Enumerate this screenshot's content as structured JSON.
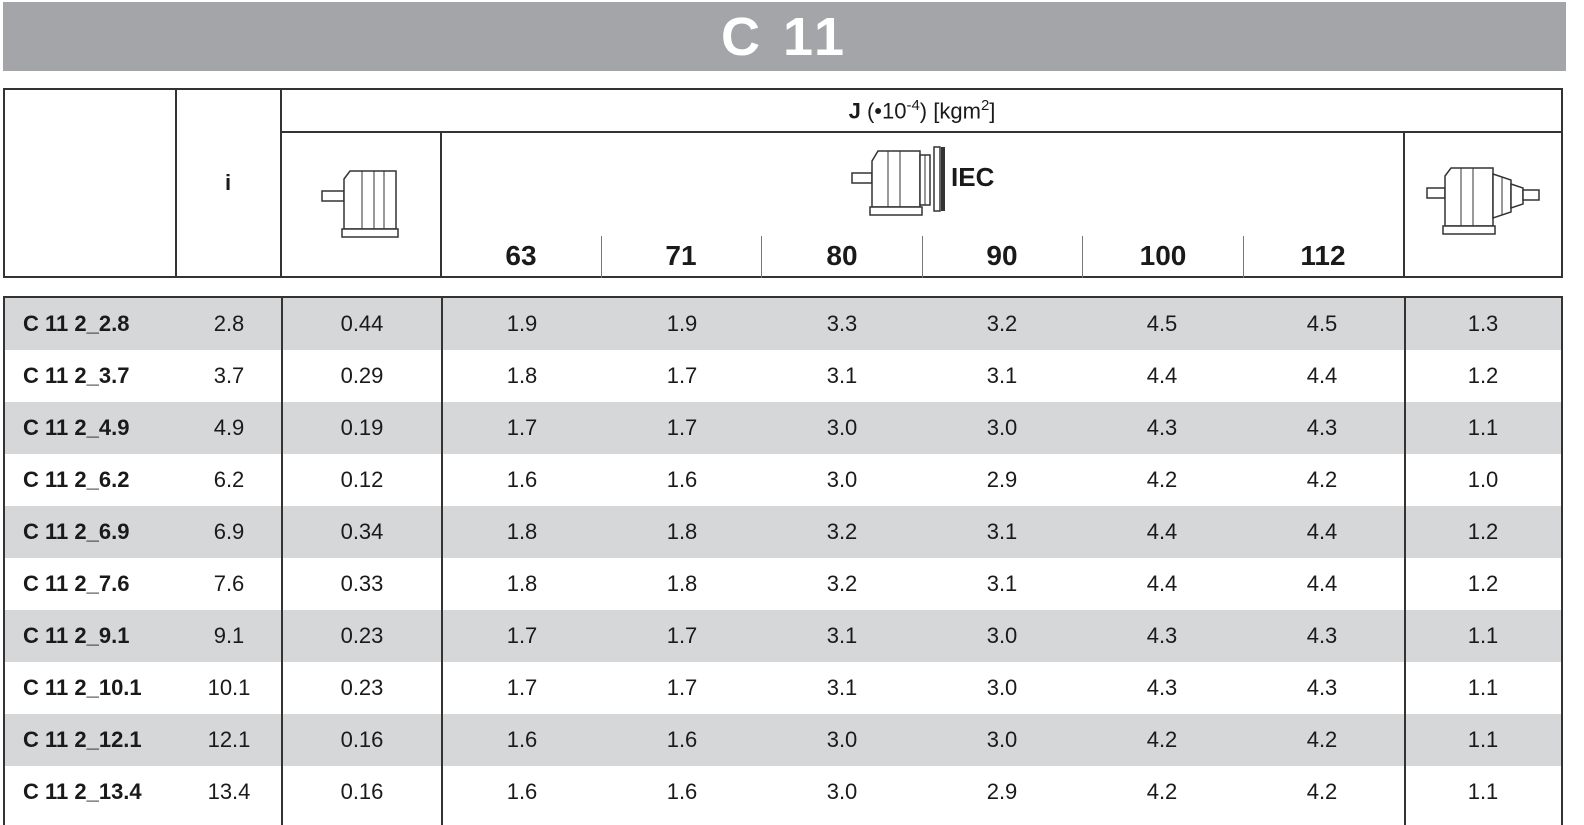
{
  "title": "C 11",
  "header": {
    "j_symbol": "J",
    "j_factor": "(•10",
    "j_exp": "-4",
    "j_close": ")",
    "j_unit": "[kgm",
    "j_unit_exp": "2",
    "j_unit_close": "]",
    "ratio_label": "i",
    "iec_label": "IEC",
    "motor_sizes": [
      "63",
      "71",
      "80",
      "90",
      "100",
      "112"
    ],
    "icons": [
      "gearbox-solid-shaft-icon",
      "gearbox-iec-motor-icon",
      "gearbox-input-shaft-icon"
    ]
  },
  "rows": [
    {
      "code": "C 11 2_2.8",
      "i": "2.8",
      "base": "0.44",
      "iec": [
        "1.9",
        "1.9",
        "3.3",
        "3.2",
        "4.5",
        "4.5"
      ],
      "shaft": "1.3"
    },
    {
      "code": "C 11 2_3.7",
      "i": "3.7",
      "base": "0.29",
      "iec": [
        "1.8",
        "1.7",
        "3.1",
        "3.1",
        "4.4",
        "4.4"
      ],
      "shaft": "1.2"
    },
    {
      "code": "C 11 2_4.9",
      "i": "4.9",
      "base": "0.19",
      "iec": [
        "1.7",
        "1.7",
        "3.0",
        "3.0",
        "4.3",
        "4.3"
      ],
      "shaft": "1.1"
    },
    {
      "code": "C 11 2_6.2",
      "i": "6.2",
      "base": "0.12",
      "iec": [
        "1.6",
        "1.6",
        "3.0",
        "2.9",
        "4.2",
        "4.2"
      ],
      "shaft": "1.0"
    },
    {
      "code": "C 11 2_6.9",
      "i": "6.9",
      "base": "0.34",
      "iec": [
        "1.8",
        "1.8",
        "3.2",
        "3.1",
        "4.4",
        "4.4"
      ],
      "shaft": "1.2"
    },
    {
      "code": "C 11 2_7.6",
      "i": "7.6",
      "base": "0.33",
      "iec": [
        "1.8",
        "1.8",
        "3.2",
        "3.1",
        "4.4",
        "4.4"
      ],
      "shaft": "1.2"
    },
    {
      "code": "C 11 2_9.1",
      "i": "9.1",
      "base": "0.23",
      "iec": [
        "1.7",
        "1.7",
        "3.1",
        "3.0",
        "4.3",
        "4.3"
      ],
      "shaft": "1.1"
    },
    {
      "code": "C 11 2_10.1",
      "i": "10.1",
      "base": "0.23",
      "iec": [
        "1.7",
        "1.7",
        "3.1",
        "3.0",
        "4.3",
        "4.3"
      ],
      "shaft": "1.1"
    },
    {
      "code": "C 11 2_12.1",
      "i": "12.1",
      "base": "0.16",
      "iec": [
        "1.6",
        "1.6",
        "3.0",
        "3.0",
        "4.2",
        "4.2"
      ],
      "shaft": "1.1"
    },
    {
      "code": "C 11 2_13.4",
      "i": "13.4",
      "base": "0.16",
      "iec": [
        "1.6",
        "1.6",
        "3.0",
        "2.9",
        "4.2",
        "4.2"
      ],
      "shaft": "1.1"
    }
  ]
}
